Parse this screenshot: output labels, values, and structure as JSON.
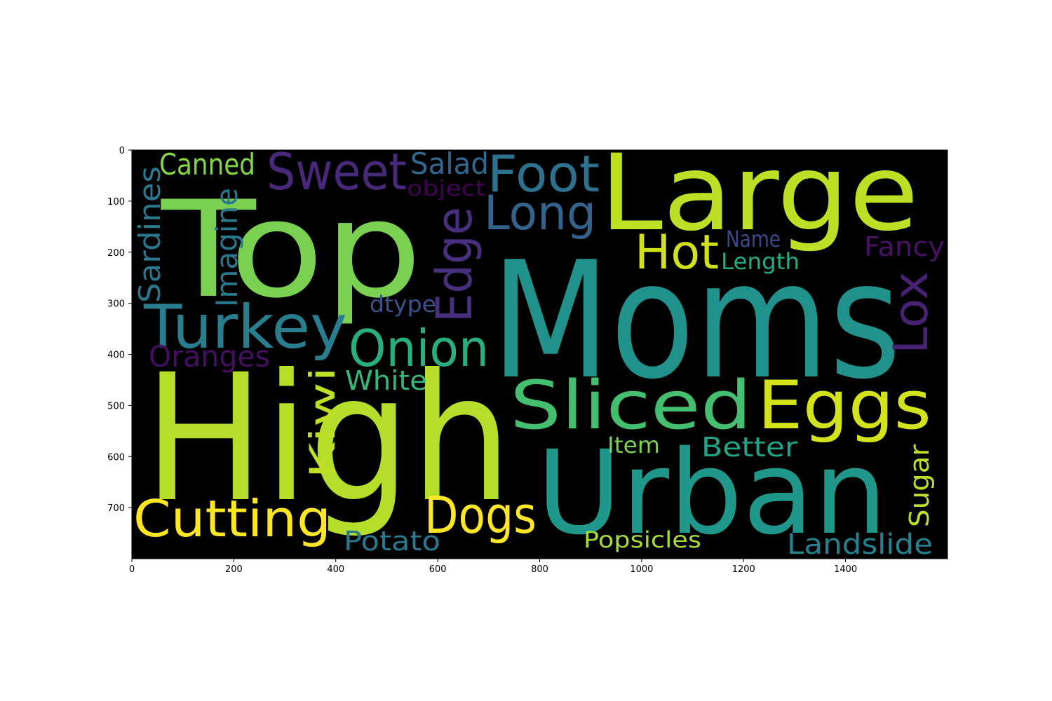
{
  "image": {
    "background_color": "#000000",
    "x_ticks": [
      "0",
      "200",
      "400",
      "600",
      "800",
      "1000",
      "1200",
      "1400"
    ],
    "y_ticks": [
      "0",
      "100",
      "200",
      "300",
      "400",
      "500",
      "600",
      "700"
    ]
  },
  "words": [
    {
      "text": "Top",
      "color": "#7ad151"
    },
    {
      "text": "Large",
      "color": "#bddf26"
    },
    {
      "text": "Moms",
      "color": "#21918c"
    },
    {
      "text": "High",
      "color": "#b5de2b"
    },
    {
      "text": "Urban",
      "color": "#1f988b"
    },
    {
      "text": "Sweet",
      "color": "#482878"
    },
    {
      "text": "Foot",
      "color": "#2c728e"
    },
    {
      "text": "Long",
      "color": "#33638d"
    },
    {
      "text": "Salad",
      "color": "#31688e"
    },
    {
      "text": "Canned",
      "color": "#86d549"
    },
    {
      "text": "object",
      "color": "#440154"
    },
    {
      "text": "Sardines",
      "color": "#2a788e"
    },
    {
      "text": "Imagine",
      "color": "#2a788e"
    },
    {
      "text": "Edge",
      "color": "#472f7d"
    },
    {
      "text": "Hot",
      "color": "#d0e11c"
    },
    {
      "text": "Name",
      "color": "#3e4989"
    },
    {
      "text": "Fancy",
      "color": "#471164"
    },
    {
      "text": "Length",
      "color": "#25ab82"
    },
    {
      "text": "Turkey",
      "color": "#287d8e"
    },
    {
      "text": "dtype",
      "color": "#3b528b"
    },
    {
      "text": "Onion",
      "color": "#29af7f"
    },
    {
      "text": "Lox",
      "color": "#482173"
    },
    {
      "text": "Oranges",
      "color": "#440f5f"
    },
    {
      "text": "White",
      "color": "#35b779"
    },
    {
      "text": "Sliced",
      "color": "#44bf70"
    },
    {
      "text": "Eggs",
      "color": "#d2e21b"
    },
    {
      "text": "Kiwi",
      "color": "#bddf26"
    },
    {
      "text": "Item",
      "color": "#7ad151"
    },
    {
      "text": "Better",
      "color": "#20a486"
    },
    {
      "text": "Sugar",
      "color": "#bddf26"
    },
    {
      "text": "Cutting",
      "color": "#fde725"
    },
    {
      "text": "Dogs",
      "color": "#fde725"
    },
    {
      "text": "Potato",
      "color": "#2a788e"
    },
    {
      "text": "Popsicles",
      "color": "#a5db36"
    },
    {
      "text": "Landslide",
      "color": "#27808e"
    }
  ]
}
